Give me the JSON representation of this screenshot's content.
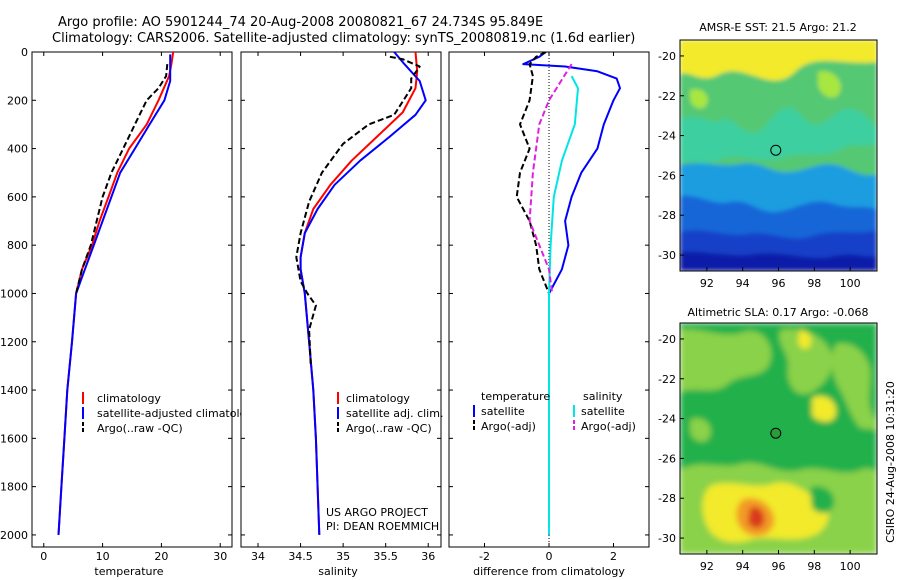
{
  "title": {
    "line1": "Argo profile: AO 5901244_74 20-Aug-2008 20080821_67 24.734S 95.849E",
    "line2": "Climatology: CARS2006. Satellite-adjusted climatology: synTS_20080819.nc (1.6d earlier)"
  },
  "colors": {
    "climatology": "#ff0000",
    "satellite": "#0000ff",
    "argo": "#000000",
    "salinity_satellite": "#00e5e5",
    "salinity_argo": "#e020e0"
  },
  "chart_data": [
    {
      "id": "temperature",
      "type": "line",
      "xlabel": "temperature",
      "ylabel": "",
      "xlim": [
        -2,
        32
      ],
      "ylim": [
        2050,
        0
      ],
      "xticks": [
        "0",
        "10",
        "20",
        "30"
      ],
      "yticks": [
        "0",
        "200",
        "400",
        "600",
        "800",
        "1000",
        "1200",
        "1400",
        "1600",
        "1800",
        "2000"
      ],
      "legend": {
        "placement": "lower-right",
        "entries": [
          "climatology",
          "satellite-adjusted climatology",
          "Argo(..raw -QC)"
        ]
      },
      "series": [
        {
          "name": "climatology",
          "color": "#ff0000",
          "style": "solid",
          "points": [
            [
              22,
              0
            ],
            [
              21.7,
              50
            ],
            [
              21.3,
              100
            ],
            [
              19.5,
              200
            ],
            [
              17.5,
              300
            ],
            [
              14.5,
              400
            ],
            [
              12.5,
              500
            ],
            [
              11,
              600
            ],
            [
              9.5,
              700
            ],
            [
              8.2,
              800
            ],
            [
              6.5,
              900
            ],
            [
              5.5,
              1000
            ],
            [
              4.8,
              1200
            ],
            [
              4,
              1400
            ],
            [
              3.5,
              1600
            ],
            [
              3,
              1800
            ],
            [
              2.5,
              2000
            ]
          ]
        },
        {
          "name": "satellite-adjusted climatology",
          "color": "#0000ff",
          "style": "solid",
          "points": [
            [
              21.5,
              10
            ],
            [
              21.5,
              50
            ],
            [
              21.5,
              120
            ],
            [
              20.5,
              200
            ],
            [
              18,
              300
            ],
            [
              15.5,
              400
            ],
            [
              13,
              500
            ],
            [
              11.5,
              600
            ],
            [
              10,
              700
            ],
            [
              8.5,
              800
            ],
            [
              7,
              900
            ],
            [
              5.5,
              1000
            ],
            [
              4.8,
              1200
            ],
            [
              4,
              1400
            ],
            [
              3.5,
              1600
            ],
            [
              3,
              1800
            ],
            [
              2.5,
              2000
            ]
          ]
        },
        {
          "name": "Argo(..raw -QC)",
          "color": "#000000",
          "style": "dashed",
          "points": [
            [
              21,
              50
            ],
            [
              20.8,
              100
            ],
            [
              19.5,
              150
            ],
            [
              17.5,
              200
            ],
            [
              15.5,
              300
            ],
            [
              13.5,
              400
            ],
            [
              11.5,
              500
            ],
            [
              10,
              600
            ],
            [
              9,
              700
            ],
            [
              8,
              800
            ],
            [
              6.5,
              900
            ],
            [
              5.5,
              1000
            ]
          ]
        }
      ]
    },
    {
      "id": "salinity",
      "type": "line",
      "xlabel": "salinity",
      "ylabel": "",
      "xlim": [
        33.8,
        36.15
      ],
      "ylim": [
        2050,
        0
      ],
      "xticks": [
        "34",
        "34.5",
        "35",
        "35.5",
        "36"
      ],
      "legend": {
        "placement": "lower-right",
        "entries": [
          "climatology",
          "satellite adj. clim.",
          "Argo(..raw -QC)"
        ]
      },
      "annotation": [
        "US ARGO PROJECT",
        "PI: DEAN ROEMMICH"
      ],
      "series": [
        {
          "name": "climatology",
          "color": "#ff0000",
          "style": "solid",
          "points": [
            [
              35.85,
              0
            ],
            [
              35.87,
              80
            ],
            [
              35.85,
              150
            ],
            [
              35.7,
              250
            ],
            [
              35.4,
              350
            ],
            [
              35.1,
              450
            ],
            [
              34.85,
              550
            ],
            [
              34.65,
              650
            ],
            [
              34.55,
              750
            ],
            [
              34.5,
              850
            ],
            [
              34.5,
              900
            ],
            [
              34.55,
              1000
            ],
            [
              34.6,
              1200
            ],
            [
              34.65,
              1400
            ],
            [
              34.68,
              1600
            ],
            [
              34.7,
              1800
            ],
            [
              34.72,
              2000
            ]
          ]
        },
        {
          "name": "satellite adj. clim.",
          "color": "#0000ff",
          "style": "solid",
          "points": [
            [
              35.6,
              0
            ],
            [
              35.72,
              50
            ],
            [
              35.9,
              120
            ],
            [
              35.97,
              200
            ],
            [
              35.85,
              260
            ],
            [
              35.55,
              350
            ],
            [
              35.2,
              450
            ],
            [
              34.9,
              550
            ],
            [
              34.7,
              650
            ],
            [
              34.55,
              750
            ],
            [
              34.5,
              850
            ],
            [
              34.5,
              900
            ],
            [
              34.55,
              1000
            ],
            [
              34.6,
              1200
            ],
            [
              34.65,
              1400
            ],
            [
              34.68,
              1600
            ],
            [
              34.7,
              1800
            ],
            [
              34.72,
              2000
            ]
          ]
        },
        {
          "name": "Argo(..raw -QC)",
          "color": "#000000",
          "style": "dashed",
          "points": [
            [
              35.55,
              20
            ],
            [
              35.7,
              30
            ],
            [
              35.9,
              60
            ],
            [
              35.8,
              110
            ],
            [
              35.8,
              150
            ],
            [
              35.6,
              260
            ],
            [
              35.3,
              300
            ],
            [
              35,
              380
            ],
            [
              34.75,
              500
            ],
            [
              34.6,
              620
            ],
            [
              34.5,
              750
            ],
            [
              34.45,
              850
            ],
            [
              34.5,
              950
            ],
            [
              34.58,
              1000
            ],
            [
              34.68,
              1050
            ],
            [
              34.6,
              1150
            ],
            [
              34.62,
              1300
            ]
          ]
        }
      ]
    },
    {
      "id": "difference",
      "type": "line",
      "xlabel": "difference from climatology",
      "ylabel": "",
      "xlim": [
        -3.1,
        3.1
      ],
      "ylim": [
        2050,
        0
      ],
      "xticks": [
        "-2",
        "0",
        "2"
      ],
      "legend": {
        "placement": "lower-center",
        "headings": [
          "temperature",
          "salinity"
        ],
        "entries": [
          "satellite",
          "Argo(-adj)",
          "satellite",
          "Argo(-adj)"
        ]
      },
      "series": [
        {
          "name": "satellite",
          "group": "temperature",
          "color": "#0000ff",
          "style": "solid",
          "points": [
            [
              -0.1,
              0
            ],
            [
              -0.3,
              20
            ],
            [
              -0.8,
              50
            ],
            [
              0.5,
              60
            ],
            [
              1.5,
              80
            ],
            [
              2.1,
              110
            ],
            [
              2.2,
              150
            ],
            [
              2,
              200
            ],
            [
              1.7,
              300
            ],
            [
              1.5,
              400
            ],
            [
              1,
              500
            ],
            [
              0.7,
              600
            ],
            [
              0.5,
              700
            ],
            [
              0.6,
              800
            ],
            [
              0.4,
              900
            ],
            [
              0.2,
              950
            ],
            [
              0,
              1000
            ],
            [
              0,
              2000
            ]
          ]
        },
        {
          "name": "Argo(-adj)",
          "group": "temperature",
          "color": "#000000",
          "style": "dashed",
          "points": [
            [
              -0.1,
              0
            ],
            [
              -0.4,
              20
            ],
            [
              -0.6,
              50
            ],
            [
              -0.5,
              100
            ],
            [
              -0.6,
              200
            ],
            [
              -0.9,
              300
            ],
            [
              -0.6,
              400
            ],
            [
              -0.9,
              500
            ],
            [
              -1,
              600
            ],
            [
              -0.6,
              700
            ],
            [
              -0.4,
              800
            ],
            [
              -0.3,
              900
            ],
            [
              0,
              1000
            ]
          ]
        },
        {
          "name": "satellite",
          "group": "salinity",
          "color": "#00e5e5",
          "style": "solid",
          "points": [
            [
              0.7,
              100
            ],
            [
              0.9,
              150
            ],
            [
              0.8,
              300
            ],
            [
              0.4,
              450
            ],
            [
              0.15,
              600
            ],
            [
              0.05,
              800
            ],
            [
              0,
              1000
            ],
            [
              0,
              2000
            ]
          ]
        },
        {
          "name": "Argo(-adj)",
          "group": "salinity",
          "color": "#e020e0",
          "style": "dashed",
          "points": [
            [
              0.7,
              50
            ],
            [
              0,
              200
            ],
            [
              -0.3,
              300
            ],
            [
              -0.4,
              400
            ],
            [
              -0.5,
              500
            ],
            [
              -0.6,
              700
            ],
            [
              0,
              900
            ],
            [
              0.1,
              1000
            ]
          ]
        }
      ]
    },
    {
      "id": "sst-map",
      "type": "heatmap",
      "title": "AMSR-E SST: 21.5 Argo: 21.2",
      "xlim": [
        90.5,
        101.5
      ],
      "ylim": [
        -30.8,
        -19.2
      ],
      "xticks": [
        "92",
        "94",
        "96",
        "98",
        "100"
      ],
      "yticks": [
        "-20",
        "-22",
        "-24",
        "-26",
        "-28",
        "-30"
      ],
      "marker": {
        "lon": 95.849,
        "lat": -24.734,
        "color": "#000000",
        "fill": "none"
      }
    },
    {
      "id": "sla-map",
      "type": "heatmap",
      "title": "Altimetric SLA: 0.17 Argo: -0.068",
      "xlim": [
        90.5,
        101.5
      ],
      "ylim": [
        -30.8,
        -19.2
      ],
      "xticks": [
        "92",
        "94",
        "96",
        "98",
        "100"
      ],
      "yticks": [
        "-20",
        "-22",
        "-24",
        "-26",
        "-28",
        "-30"
      ],
      "marker": {
        "lon": 95.849,
        "lat": -24.734,
        "color": "#000000",
        "fill": "#2a9c3a"
      }
    }
  ],
  "side_label": "CSIRO 24-Aug-2008 10:31:20"
}
